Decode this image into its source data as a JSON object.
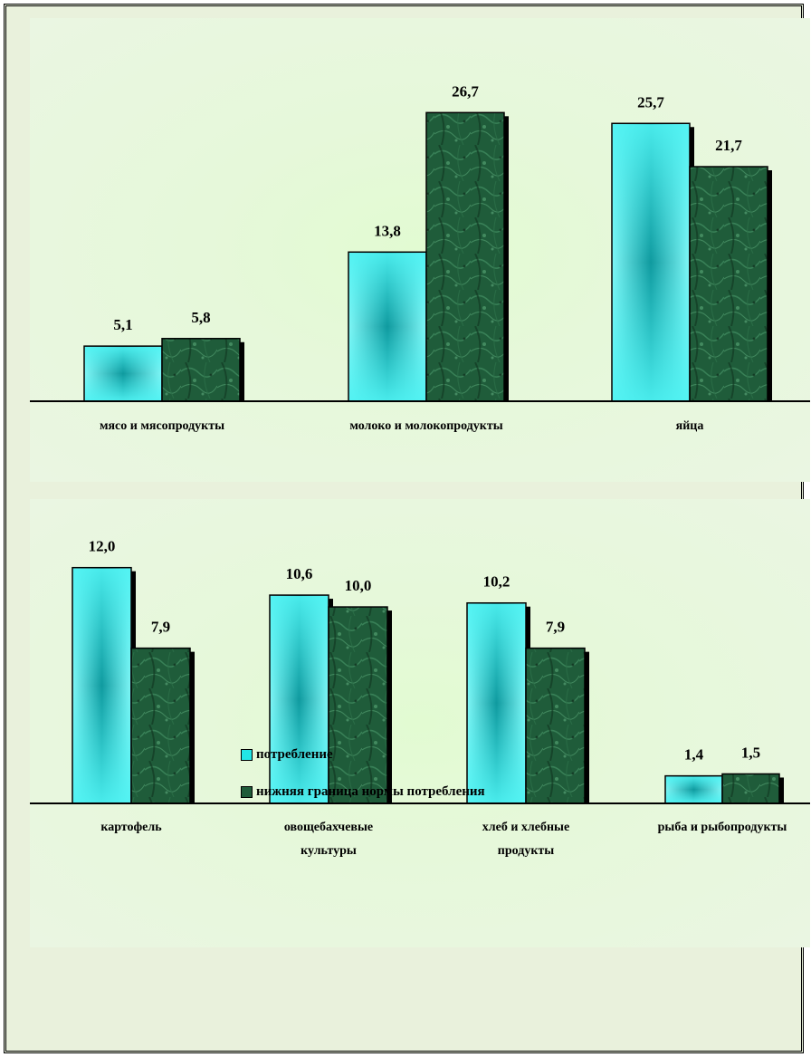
{
  "chart_data": [
    {
      "type": "bar",
      "categories": [
        "мясо и мясопродукты",
        "молоко и молокопродукты",
        "яйца"
      ],
      "category_lines": [
        [
          "мясо и мясопродукты"
        ],
        [
          "молоко и молокопродукты"
        ],
        [
          "яйца"
        ]
      ],
      "series": [
        {
          "name": "потребление",
          "values": [
            5.1,
            13.8,
            25.7
          ],
          "labels": [
            "5,1",
            "13,8",
            "25,7"
          ]
        },
        {
          "name": "нижняя граница нормы потребления",
          "values": [
            5.8,
            26.7,
            21.7
          ],
          "labels": [
            "5,8",
            "26,7",
            "21,7"
          ]
        }
      ],
      "ylim": [
        0,
        31
      ],
      "grid": false,
      "title": "",
      "xlabel": "",
      "ylabel": ""
    },
    {
      "type": "bar",
      "categories": [
        "картофель",
        "овощебахчевые культуры",
        "хлеб и хлебные продукты",
        "рыба и рыбопродукты"
      ],
      "category_lines": [
        [
          "картофель"
        ],
        [
          "овощебахчевые",
          "культуры"
        ],
        [
          "хлеб и хлебные",
          "продукты"
        ],
        [
          "рыба и  рыбопродукты"
        ]
      ],
      "series": [
        {
          "name": "потребление",
          "values": [
            12.0,
            10.6,
            10.2,
            1.4
          ],
          "labels": [
            "12,0",
            "10,6",
            "10,2",
            "1,4"
          ]
        },
        {
          "name": "нижняя граница нормы потребления",
          "values": [
            7.9,
            10.0,
            7.9,
            1.5
          ],
          "labels": [
            "7,9",
            "10,0",
            "7,9",
            "1,5"
          ]
        }
      ],
      "ylim": [
        0,
        13
      ],
      "grid": false,
      "title": "",
      "xlabel": "",
      "ylabel": ""
    }
  ],
  "legend": {
    "placement": "bottom-center",
    "items": [
      {
        "label": "потребление",
        "color": "#22e6e6"
      },
      {
        "label": "нижняя граница нормы потребления",
        "color": "#1f5c3a"
      }
    ]
  },
  "colors": {
    "consumption_light": "#7ff7f7",
    "consumption_dark": "#0f9a9f",
    "norm_base": "#1f5c3a",
    "norm_dark": "#113a24",
    "shadow": "#000000"
  }
}
